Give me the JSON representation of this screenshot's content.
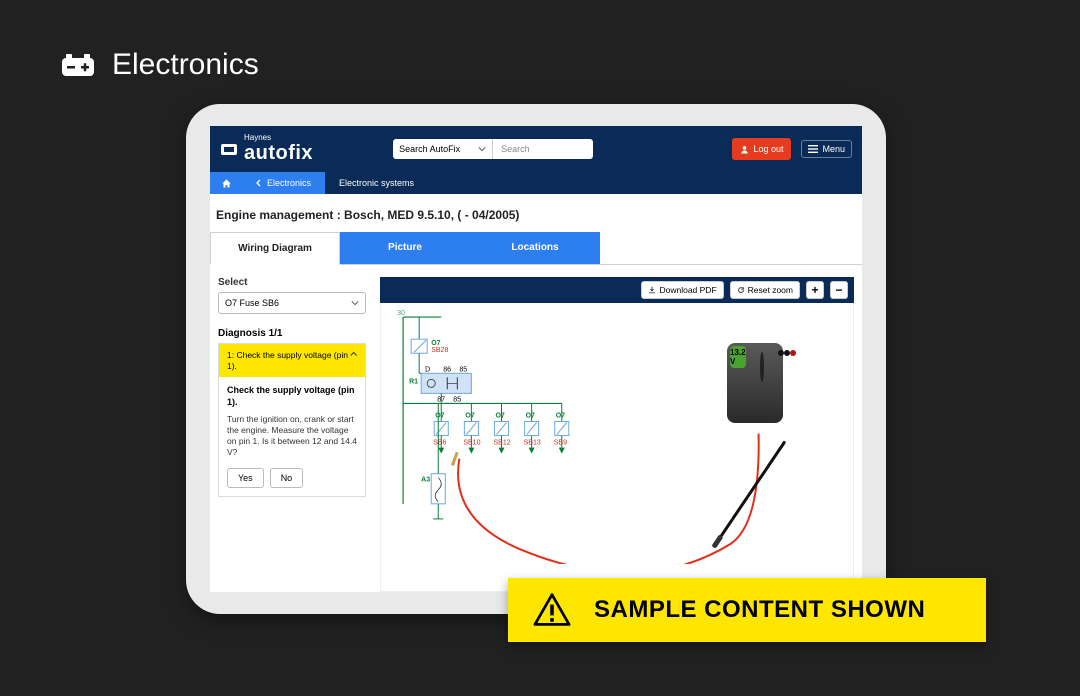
{
  "page_label": "Electronics",
  "header": {
    "brand_small": "Haynes",
    "brand_big": "autofix",
    "search_scope": "Search AutoFix",
    "search_placeholder": "Search",
    "logout": "Log out",
    "menu": "Menu"
  },
  "breadcrumb": {
    "back": "Electronics",
    "current": "Electronic systems"
  },
  "title": "Engine management :  Bosch, MED 9.5.10, ( - 04/2005)",
  "tabs": {
    "wiring": "Wiring Diagram",
    "picture": "Picture",
    "locations": "Locations"
  },
  "select": {
    "label": "Select",
    "value": "O7  Fuse  SB6"
  },
  "diagnosis": {
    "label": "Diagnosis 1/1",
    "header": "1: Check the supply voltage (pin 1).",
    "body_title": "Check the supply voltage (pin 1).",
    "body_text": "Turn the ignition on, crank or start the engine. Measure the voltage on pin 1. Is it between 12 and 14.4 V?",
    "yes": "Yes",
    "no": "No"
  },
  "toolbar": {
    "download": "Download PDF",
    "reset": "Reset zoom",
    "zoom_in": "+",
    "zoom_out": "−"
  },
  "wiring": {
    "top_node_num": "30",
    "fuse_group_top": {
      "lbl": "O7",
      "sub": "SB28"
    },
    "r1": "R1",
    "r1_pins": [
      "D",
      "86",
      "85"
    ],
    "r1_side": [
      "87",
      "85"
    ],
    "fuse_row": [
      {
        "lbl": "O7",
        "sub": "SB6"
      },
      {
        "lbl": "O7",
        "sub": "SB10"
      },
      {
        "lbl": "O7",
        "sub": "SB12"
      },
      {
        "lbl": "O7",
        "sub": "SB13"
      },
      {
        "lbl": "O7",
        "sub": "SB9"
      }
    ],
    "a3": "A3",
    "meter_reading": "13.2 V",
    "colors": {
      "wire_green": "#0a7f3a",
      "wire_red": "#e22f1c",
      "lbl_red": "#c43022",
      "fuse_box": "#6aa9e6",
      "relay_box": "#cfe2f7"
    }
  },
  "banner": "SAMPLE CONTENT SHOWN"
}
